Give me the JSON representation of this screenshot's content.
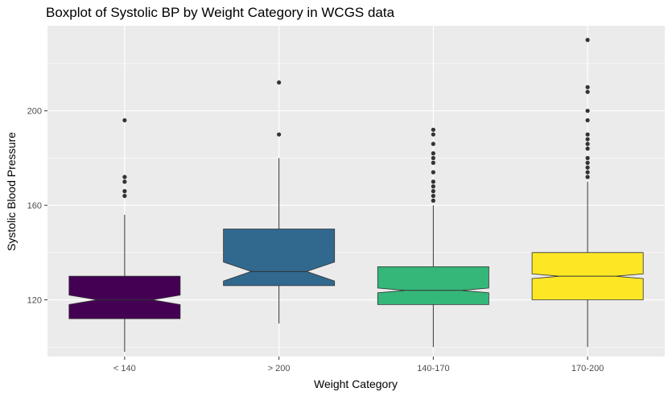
{
  "chart_data": {
    "type": "boxplot",
    "title": "Boxplot of Systolic BP by Weight Category in WCGS data",
    "xlabel": "Weight Category",
    "ylabel": "Systolic Blood Pressure",
    "ylim": [
      96,
      236
    ],
    "yticks": [
      120,
      160,
      200
    ],
    "grid": true,
    "notched": true,
    "categories": [
      "< 140",
      "> 200",
      "140-170",
      "170-200"
    ],
    "colors": [
      "#440154",
      "#31688E",
      "#35B779",
      "#FDE725"
    ],
    "panel_background": "#EBEBEB",
    "boxes": [
      {
        "category": "< 140",
        "whisker_low": 98,
        "q1": 112,
        "median": 120,
        "q3": 130,
        "whisker_high": 156,
        "notch_low": 118,
        "notch_high": 122,
        "outliers": [
          164,
          166,
          170,
          172,
          196
        ]
      },
      {
        "category": "> 200",
        "whisker_low": 110,
        "q1": 126,
        "median": 132,
        "q3": 150,
        "whisker_high": 180,
        "notch_low": 128,
        "notch_high": 136,
        "outliers": [
          190,
          212
        ]
      },
      {
        "category": "140-170",
        "whisker_low": 100,
        "q1": 118,
        "median": 124,
        "q3": 134,
        "whisker_high": 160,
        "notch_low": 123,
        "notch_high": 125,
        "outliers": [
          162,
          164,
          166,
          168,
          170,
          174,
          178,
          180,
          182,
          186,
          190,
          192
        ]
      },
      {
        "category": "170-200",
        "whisker_low": 100,
        "q1": 120,
        "median": 130,
        "q3": 140,
        "whisker_high": 170,
        "notch_low": 129,
        "notch_high": 131,
        "outliers": [
          172,
          174,
          176,
          178,
          180,
          184,
          186,
          188,
          190,
          196,
          200,
          208,
          210,
          230
        ]
      }
    ]
  }
}
